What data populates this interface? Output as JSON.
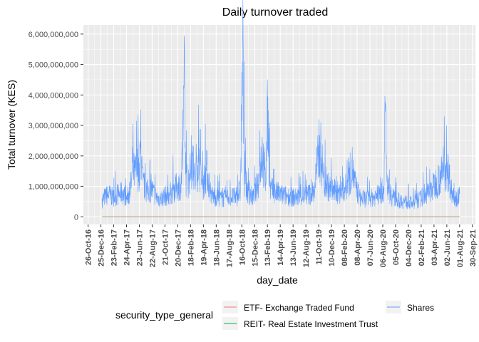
{
  "chart_data": {
    "type": "line",
    "title": "Daily turnover traded",
    "xlabel": "day_date",
    "ylabel": "Total turnover (KES)",
    "x_ticks": [
      "26-Oct-16",
      "25-Dec-16",
      "23-Feb-17",
      "24-Apr-17",
      "23-Jun-17",
      "22-Aug-17",
      "21-Oct-17",
      "20-Dec-17",
      "18-Feb-18",
      "19-Apr-18",
      "18-Jun-18",
      "17-Aug-18",
      "16-Oct-18",
      "15-Dec-18",
      "13-Feb-19",
      "14-Apr-19",
      "13-Jun-19",
      "12-Aug-19",
      "11-Oct-19",
      "10-Dec-19",
      "08-Feb-20",
      "08-Apr-20",
      "07-Jun-20",
      "06-Aug-20",
      "05-Oct-20",
      "04-Dec-20",
      "02-Feb-21",
      "03-Apr-21",
      "02-Jun-21",
      "01-Aug-21",
      "30-Sep-21"
    ],
    "y_ticks": [
      "0",
      "1,000,000,000",
      "2,000,000,000",
      "3,000,000,000",
      "4,000,000,000",
      "5,000,000,000",
      "6,000,000,000"
    ],
    "ylim": [
      -250000000,
      6300000000
    ],
    "xlim": [
      "2016-10-04",
      "2021-10-14"
    ],
    "grid": true,
    "legend": {
      "title": "security_type_general",
      "position": "bottom",
      "entries": [
        {
          "label": "ETF- Exchange Traded Fund",
          "color": "#F8766D"
        },
        {
          "label": "REIT- Real Estate Investment Trust",
          "color": "#00BA38"
        },
        {
          "label": "Shares",
          "color": "#619CFF"
        }
      ]
    },
    "series": [
      {
        "name": "Shares",
        "color": "#619CFF",
        "points": [
          [
            "2016-12-30",
            600000000
          ],
          [
            "2017-01-15",
            750000000
          ],
          [
            "2017-02-01",
            820000000
          ],
          [
            "2017-02-20",
            700000000
          ],
          [
            "2017-03-15",
            800000000
          ],
          [
            "2017-04-05",
            880000000
          ],
          [
            "2017-04-25",
            650000000
          ],
          [
            "2017-05-10",
            900000000
          ],
          [
            "2017-05-20",
            1450000000
          ],
          [
            "2017-05-25",
            2550000000
          ],
          [
            "2017-06-01",
            1600000000
          ],
          [
            "2017-06-10",
            3150000000
          ],
          [
            "2017-06-15",
            1800000000
          ],
          [
            "2017-06-25",
            2350000000
          ],
          [
            "2017-07-10",
            1200000000
          ],
          [
            "2017-08-01",
            900000000
          ],
          [
            "2017-08-20",
            1000000000
          ],
          [
            "2017-09-10",
            700000000
          ],
          [
            "2017-10-01",
            650000000
          ],
          [
            "2017-10-20",
            750000000
          ],
          [
            "2017-11-10",
            800000000
          ],
          [
            "2017-12-01",
            1000000000
          ],
          [
            "2017-12-20",
            1100000000
          ],
          [
            "2018-01-05",
            1200000000
          ],
          [
            "2018-01-15",
            3250000000
          ],
          [
            "2018-01-19",
            5950000000
          ],
          [
            "2018-01-25",
            1400000000
          ],
          [
            "2018-02-10",
            1300000000
          ],
          [
            "2018-02-25",
            2000000000
          ],
          [
            "2018-03-10",
            1200000000
          ],
          [
            "2018-03-25",
            2000000000
          ],
          [
            "2018-04-15",
            1150000000
          ],
          [
            "2018-05-05",
            1700000000
          ],
          [
            "2018-05-25",
            800000000
          ],
          [
            "2018-06-20",
            700000000
          ],
          [
            "2018-07-20",
            650000000
          ],
          [
            "2018-08-20",
            750000000
          ],
          [
            "2018-09-20",
            700000000
          ],
          [
            "2018-10-10",
            1000000000
          ],
          [
            "2018-10-20",
            6050000000
          ],
          [
            "2018-10-28",
            1400000000
          ],
          [
            "2018-11-15",
            850000000
          ],
          [
            "2018-12-10",
            700000000
          ],
          [
            "2019-01-05",
            1400000000
          ],
          [
            "2019-01-20",
            2500000000
          ],
          [
            "2019-02-05",
            1100000000
          ],
          [
            "2019-02-15",
            3950000000
          ],
          [
            "2019-02-25",
            1000000000
          ],
          [
            "2019-03-20",
            900000000
          ],
          [
            "2019-04-20",
            800000000
          ],
          [
            "2019-05-20",
            750000000
          ],
          [
            "2019-06-20",
            700000000
          ],
          [
            "2019-07-20",
            750000000
          ],
          [
            "2019-08-20",
            800000000
          ],
          [
            "2019-09-20",
            900000000
          ],
          [
            "2019-10-05",
            2000000000
          ],
          [
            "2019-10-12",
            3200000000
          ],
          [
            "2019-10-20",
            2400000000
          ],
          [
            "2019-11-05",
            1300000000
          ],
          [
            "2019-12-05",
            1000000000
          ],
          [
            "2020-01-15",
            850000000
          ],
          [
            "2020-02-20",
            1100000000
          ],
          [
            "2020-03-15",
            1850000000
          ],
          [
            "2020-03-25",
            1300000000
          ],
          [
            "2020-04-20",
            700000000
          ],
          [
            "2020-05-20",
            650000000
          ],
          [
            "2020-06-20",
            700000000
          ],
          [
            "2020-07-20",
            800000000
          ],
          [
            "2020-08-10",
            1000000000
          ],
          [
            "2020-08-18",
            3750000000
          ],
          [
            "2020-08-25",
            1200000000
          ],
          [
            "2020-09-20",
            700000000
          ],
          [
            "2020-10-20",
            600000000
          ],
          [
            "2020-11-20",
            550000000
          ],
          [
            "2020-12-20",
            500000000
          ],
          [
            "2021-01-20",
            600000000
          ],
          [
            "2021-02-20",
            800000000
          ],
          [
            "2021-03-15",
            900000000
          ],
          [
            "2021-04-15",
            1300000000
          ],
          [
            "2021-05-05",
            1500000000
          ],
          [
            "2021-05-20",
            2050000000
          ],
          [
            "2021-06-05",
            1800000000
          ],
          [
            "2021-06-25",
            900000000
          ],
          [
            "2021-07-15",
            700000000
          ],
          [
            "2021-08-01",
            750000000
          ]
        ]
      },
      {
        "name": "REIT- Real Estate Investment Trust",
        "color": "#00BA38",
        "points": [
          [
            "2016-12-30",
            5000000
          ],
          [
            "2021-08-01",
            5000000
          ]
        ]
      },
      {
        "name": "ETF- Exchange Traded Fund",
        "color": "#F8766D",
        "points": [
          [
            "2017-01-01",
            0
          ],
          [
            "2021-08-01",
            0
          ]
        ]
      }
    ]
  }
}
